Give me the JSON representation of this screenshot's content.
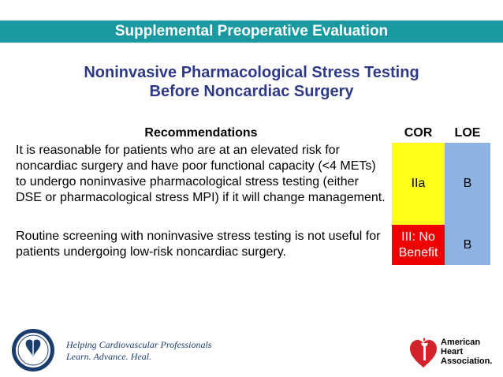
{
  "banner": {
    "title": "Supplemental Preoperative Evaluation"
  },
  "slide": {
    "title_line1": "Noninvasive Pharmacological Stress Testing",
    "title_line2": "Before Noncardiac Surgery"
  },
  "table": {
    "headers": {
      "recommendations": "Recommendations",
      "cor": "COR",
      "loe": "LOE"
    },
    "rows": [
      {
        "text": "It is reasonable for patients who are at an elevated risk for noncardiac surgery and have poor functional capacity (<4 METs) to undergo noninvasive pharmacological stress testing (either DSE or pharmacological stress MPI) if it will change management.",
        "cor": "IIa",
        "loe": "B",
        "cor_color": "#ffff1a",
        "loe_color": "#8db3e2"
      },
      {
        "text": "Routine screening with noninvasive stress testing is not useful for patients undergoing low-risk noncardiac surgery.",
        "cor": "III: No Benefit",
        "loe": "B",
        "cor_color": "#ee0000",
        "loe_color": "#8db3e2"
      }
    ]
  },
  "footer": {
    "acc_tagline_line1": "Helping Cardiovascular Professionals",
    "acc_tagline_line2": "Learn. Advance. Heal.",
    "acc_logo_icon": "acc-seal-icon",
    "aha_logo_icon": "heart-torch-icon",
    "aha_line1": "American",
    "aha_line2": "Heart",
    "aha_line3": "Association."
  },
  "colors": {
    "banner": "#1a9aa0",
    "title": "#2e3a87"
  }
}
